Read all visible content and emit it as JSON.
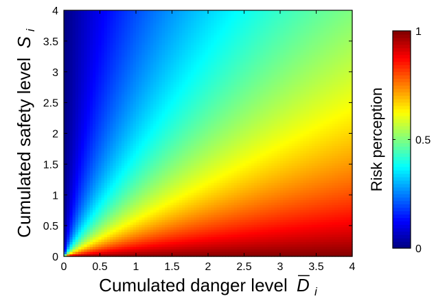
{
  "chart_data": {
    "type": "heatmap",
    "title": "",
    "xlabel": "Cumulated danger level",
    "xlabel_symbol": "D",
    "xlabel_subscript": "i",
    "ylabel": "Cumulated safety level",
    "ylabel_symbol": "S",
    "ylabel_subscript": "i",
    "xlim": [
      0,
      4
    ],
    "ylim": [
      0,
      4
    ],
    "x_ticks": [
      "0",
      "0.5",
      "1",
      "1.5",
      "2",
      "2.5",
      "3",
      "3.5",
      "4"
    ],
    "y_ticks": [
      "0",
      "0.5",
      "1",
      "1.5",
      "2",
      "2.5",
      "3",
      "3.5",
      "4"
    ],
    "value_function": "D / (D + S)",
    "colormap": "jet",
    "grid": false,
    "colorbar": {
      "label": "Risk perception",
      "range": [
        0,
        1
      ],
      "ticks": [
        "0",
        "0.5",
        "1"
      ]
    }
  }
}
